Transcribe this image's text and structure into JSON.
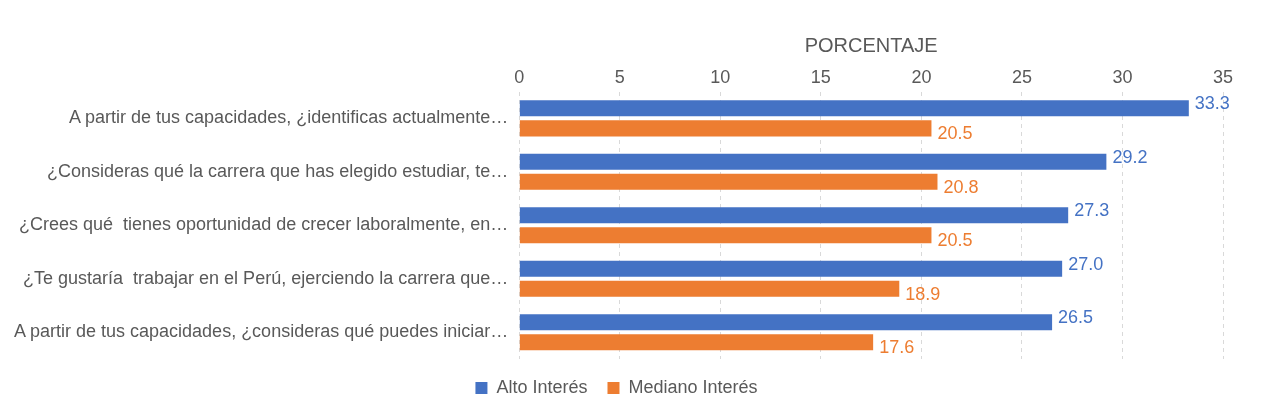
{
  "chart_data": {
    "type": "bar",
    "orientation": "horizontal",
    "xlabel": "PORCENTAJE",
    "categories": [
      "A partir de tus capacidades, ¿identificas actualmente…",
      "¿Consideras qué la carrera que has elegido estudiar, te…",
      "¿Crees qué  tienes oportunidad de crecer laboralmente, en…",
      "¿Te gustaría  trabajar en el Perú, ejerciendo la carrera que…",
      "A partir de tus capacidades, ¿consideras qué puedes iniciar…"
    ],
    "series": [
      {
        "name": "Alto Interés",
        "color": "#4472c4",
        "values": [
          33.3,
          29.2,
          27.3,
          27.0,
          26.5
        ],
        "value_labels": [
          "33.3",
          "29.2",
          "27.3",
          "27.0",
          "26.5"
        ]
      },
      {
        "name": "Mediano Interés",
        "color": "#ed7d31",
        "values": [
          20.5,
          20.8,
          20.5,
          18.9,
          17.6
        ],
        "value_labels": [
          "20.5",
          "20.8",
          "20.5",
          "18.9",
          "17.6"
        ]
      }
    ],
    "xlim": [
      0,
      35
    ],
    "xticks": [
      0,
      5,
      10,
      15,
      20,
      25,
      30,
      35
    ],
    "grid": "x",
    "legend": "bottom"
  }
}
